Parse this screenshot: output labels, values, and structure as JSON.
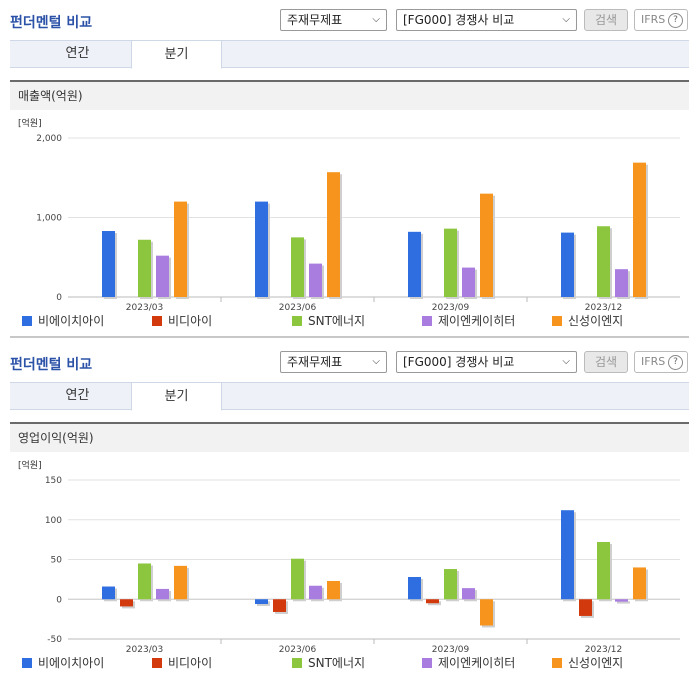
{
  "panels": [
    {
      "title": "펀더멘털 비교",
      "select1": "주재무제표",
      "select2": "[FG000] 경쟁사 비교",
      "search_label": "검색",
      "ifrs_label": "IFRS",
      "tabs": [
        "연간",
        "분기"
      ],
      "active_tab": "분기",
      "section_title": "매출액(억원)"
    },
    {
      "title": "펀더멘털 비교",
      "select1": "주재무제표",
      "select2": "[FG000] 경쟁사 비교",
      "search_label": "검색",
      "ifrs_label": "IFRS",
      "tabs": [
        "연간",
        "분기"
      ],
      "active_tab": "분기",
      "section_title": "영업이익(억원)"
    }
  ],
  "chart_data": [
    {
      "type": "bar",
      "unit_label": "[억원]",
      "categories": [
        "2023/03",
        "2023/06",
        "2023/09",
        "2023/12"
      ],
      "ylim": [
        0,
        2000
      ],
      "yticks": [
        0,
        1000,
        2000
      ],
      "ytick_labels": [
        "0",
        "1,000",
        "2,000"
      ],
      "series": [
        {
          "name": "비에이치아이",
          "color": "#2e6ee0",
          "values": [
            830,
            1200,
            820,
            810
          ]
        },
        {
          "name": "비디아이",
          "color": "#d23a0e",
          "values": [
            0,
            0,
            0,
            0
          ]
        },
        {
          "name": "SNT에너지",
          "color": "#8cc63f",
          "values": [
            720,
            750,
            860,
            890
          ]
        },
        {
          "name": "제이엔케이히터",
          "color": "#a97de0",
          "values": [
            520,
            420,
            370,
            350
          ]
        },
        {
          "name": "신성이엔지",
          "color": "#f7941d",
          "values": [
            1200,
            1570,
            1300,
            1690
          ]
        }
      ]
    },
    {
      "type": "bar",
      "unit_label": "[억원]",
      "categories": [
        "2023/03",
        "2023/06",
        "2023/09",
        "2023/12"
      ],
      "ylim": [
        -50,
        150
      ],
      "yticks": [
        -50,
        0,
        50,
        100,
        150
      ],
      "ytick_labels": [
        "-50",
        "0",
        "50",
        "100",
        "150"
      ],
      "series": [
        {
          "name": "비에이치아이",
          "color": "#2e6ee0",
          "values": [
            16,
            -6,
            28,
            112
          ]
        },
        {
          "name": "비디아이",
          "color": "#d23a0e",
          "values": [
            -9,
            -16,
            -5,
            -21
          ]
        },
        {
          "name": "SNT에너지",
          "color": "#8cc63f",
          "values": [
            45,
            51,
            38,
            72
          ]
        },
        {
          "name": "제이엔케이히터",
          "color": "#a97de0",
          "values": [
            13,
            17,
            14,
            -3
          ]
        },
        {
          "name": "신성이엔지",
          "color": "#f7941d",
          "values": [
            42,
            23,
            -33,
            40
          ]
        }
      ]
    }
  ]
}
